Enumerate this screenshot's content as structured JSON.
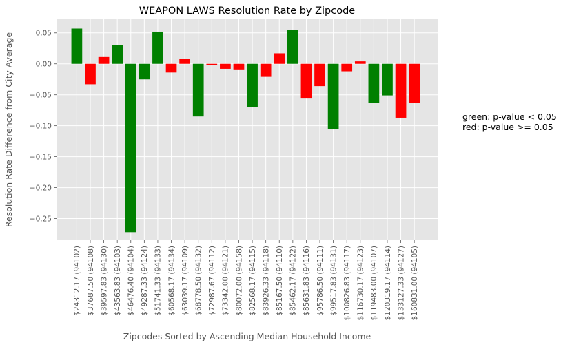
{
  "chart_data": {
    "type": "bar",
    "title": "WEAPON LAWS Resolution Rate by Zipcode",
    "xlabel": "Zipcodes Sorted by Ascending Median Household Income",
    "ylabel": "Resolution Rate Difference from City Average",
    "ylim": [
      -0.285,
      0.072
    ],
    "yticks": [
      0.05,
      0.0,
      -0.05,
      -0.1,
      -0.15,
      -0.2,
      -0.25
    ],
    "ytick_labels": [
      "0.05",
      "0.00",
      "−0.05",
      "−0.10",
      "−0.15",
      "−0.20",
      "−0.25"
    ],
    "grid": true,
    "categories": [
      "$24312.17 (94102)",
      "$37687.50 (94108)",
      "$39597.83 (94130)",
      "$43563.83 (94103)",
      "$46476.40 (94104)",
      "$49287.33 (94124)",
      "$51741.33 (94133)",
      "$60568.17 (94134)",
      "$63039.17 (94109)",
      "$68778.50 (94132)",
      "$72987.67 (94112)",
      "$73342.00 (94121)",
      "$80072.00 (94158)",
      "$82568.17 (94115)",
      "$83926.33 (94118)",
      "$85167.50 (94110)",
      "$85462.17 (94122)",
      "$85631.83 (94116)",
      "$95786.50 (94111)",
      "$99517.83 (94131)",
      "$100826.83 (94117)",
      "$116730.17 (94123)",
      "$119483.00 (94107)",
      "$120319.17 (94114)",
      "$133127.33 (94127)",
      "$160831.00 (94105)"
    ],
    "values": [
      0.057,
      -0.033,
      0.011,
      0.03,
      -0.272,
      -0.025,
      0.052,
      -0.014,
      0.008,
      -0.085,
      -0.002,
      -0.008,
      -0.009,
      -0.07,
      -0.021,
      0.017,
      0.055,
      -0.056,
      -0.036,
      -0.105,
      -0.012,
      0.004,
      -0.063,
      -0.051,
      -0.087,
      -0.063
    ],
    "significant": [
      true,
      false,
      false,
      true,
      true,
      true,
      true,
      false,
      false,
      true,
      false,
      false,
      false,
      true,
      false,
      false,
      true,
      false,
      false,
      true,
      false,
      false,
      true,
      true,
      false,
      false
    ],
    "colors": {
      "significant": "#008000",
      "not_significant": "#ff0000",
      "plot_bg": "#e5e5e5",
      "grid": "#ffffff"
    },
    "legend_position": "right",
    "annotations": [
      "green: p-value < 0.05",
      "red: p-value >= 0.05"
    ]
  }
}
